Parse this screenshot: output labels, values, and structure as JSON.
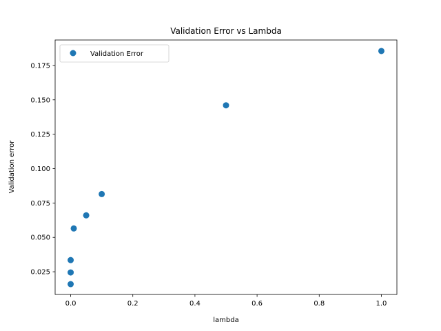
{
  "chart_data": {
    "type": "scatter",
    "title": "Validation Error vs Lambda",
    "xlabel": "lambda",
    "ylabel": "Validation error",
    "xlim": [
      -0.05,
      1.05
    ],
    "ylim": [
      0.0085,
      0.1935
    ],
    "x_ticks": [
      0.0,
      0.2,
      0.4,
      0.6,
      0.8,
      1.0
    ],
    "x_tick_labels": [
      "0.0",
      "0.2",
      "0.4",
      "0.6",
      "0.8",
      "1.0"
    ],
    "y_ticks": [
      0.025,
      0.05,
      0.075,
      0.1,
      0.125,
      0.15,
      0.175
    ],
    "y_tick_labels": [
      "0.025",
      "0.050",
      "0.075",
      "0.100",
      "0.125",
      "0.150",
      "0.175"
    ],
    "grid": false,
    "legend_position": "top-left",
    "series": [
      {
        "name": "Validation Error",
        "color": "#1f77b4",
        "marker": "circle",
        "points": [
          {
            "x": 0.0,
            "y": 0.016
          },
          {
            "x": 0.0,
            "y": 0.0245
          },
          {
            "x": 0.0,
            "y": 0.0335
          },
          {
            "x": 0.01,
            "y": 0.0565
          },
          {
            "x": 0.05,
            "y": 0.066
          },
          {
            "x": 0.1,
            "y": 0.0815
          },
          {
            "x": 0.5,
            "y": 0.146
          },
          {
            "x": 1.0,
            "y": 0.1855
          }
        ]
      }
    ]
  }
}
